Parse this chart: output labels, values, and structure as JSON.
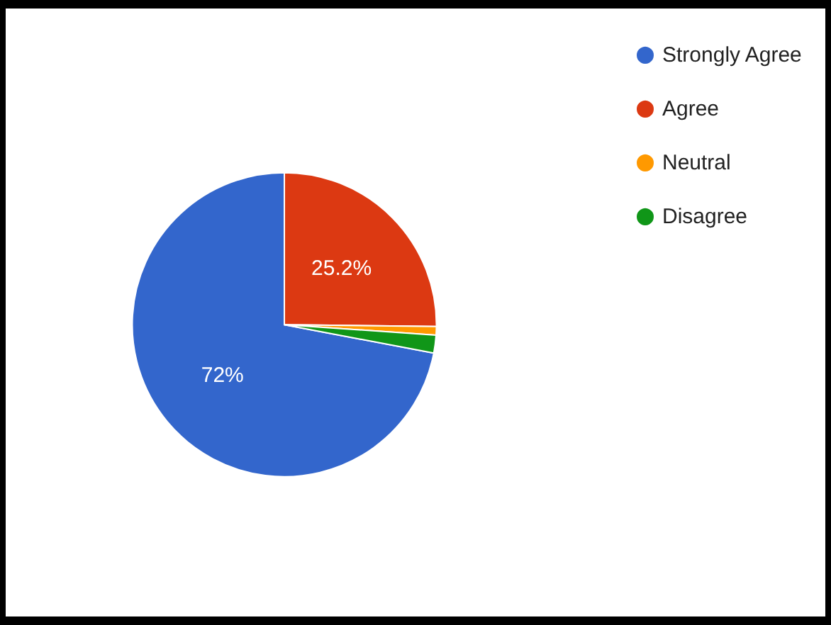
{
  "chart_data": {
    "type": "pie",
    "categories": [
      "Strongly Agree",
      "Agree",
      "Neutral",
      "Disagree"
    ],
    "values": [
      72,
      25.2,
      0.9,
      1.9
    ],
    "colors": [
      "#3366cc",
      "#dc3912",
      "#ff9900",
      "#109618"
    ],
    "value_labels": [
      "72%",
      "25.2%",
      null,
      null
    ],
    "legend": "top right"
  }
}
